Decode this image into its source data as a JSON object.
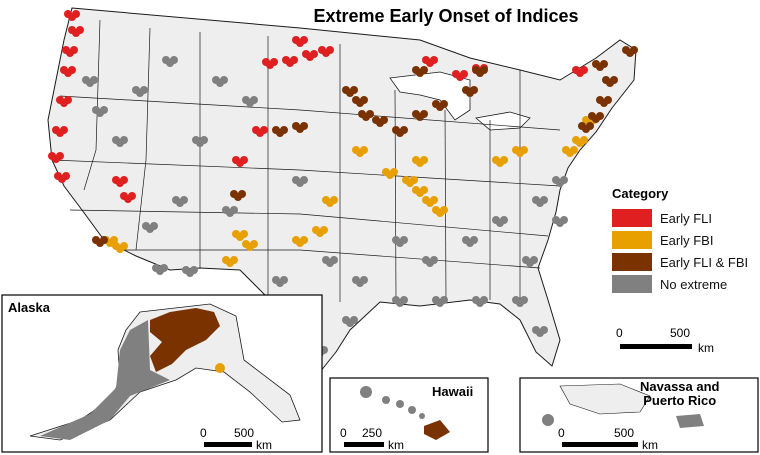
{
  "title": "Extreme Early Onset of Indices",
  "legend": {
    "title": "Category",
    "items": [
      {
        "label": "Early FLI",
        "color": "#e02020"
      },
      {
        "label": "Early FBI",
        "color": "#e8a000"
      },
      {
        "label": "Early FLI & FBI",
        "color": "#7a3200"
      },
      {
        "label": "No extreme",
        "color": "#808080"
      }
    ]
  },
  "main_scale": {
    "zero": "0",
    "max": "500",
    "unit": "km"
  },
  "insets": {
    "alaska": {
      "label": "Alaska",
      "zero": "0",
      "max": "500",
      "unit": "km"
    },
    "hawaii": {
      "label": "Hawaii",
      "zero": "0",
      "max": "250",
      "unit": "km"
    },
    "pr": {
      "label_line1": "Navassa and",
      "label_line2": "Puerto Rico",
      "zero": "0",
      "max": "500",
      "unit": "km"
    }
  },
  "colors": {
    "land": "#eeeeee",
    "border": "#1a1a1a",
    "background": "#ffffff"
  }
}
